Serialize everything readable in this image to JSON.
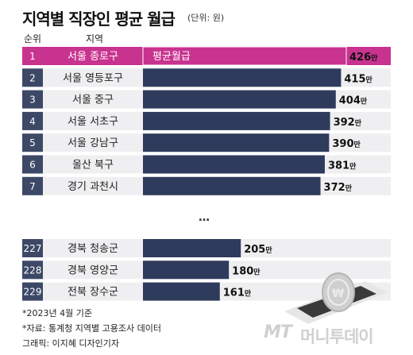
{
  "title": "지역별 직장인 평균 월급",
  "unit": "(단위: 원)",
  "headers": {
    "rank": "순위",
    "region": "지역"
  },
  "value_suffix": "만",
  "ellipsis": "…",
  "chart_data": {
    "type": "bar",
    "orientation": "horizontal",
    "title": "지역별 직장인 평균 월급",
    "unit": "(단위: 원)",
    "highlight_label": "평균월급",
    "xlim": [
      0,
      440
    ],
    "rows": [
      {
        "rank": "1",
        "region": "서울 종로구",
        "value": 426,
        "highlight": true
      },
      {
        "rank": "2",
        "region": "서울 영등포구",
        "value": 415
      },
      {
        "rank": "3",
        "region": "서울 중구",
        "value": 404
      },
      {
        "rank": "4",
        "region": "서울 서초구",
        "value": 392
      },
      {
        "rank": "5",
        "region": "서울 강남구",
        "value": 390
      },
      {
        "rank": "6",
        "region": "울산 북구",
        "value": 381
      },
      {
        "rank": "7",
        "region": "경기 과천시",
        "value": 372
      },
      {
        "rank": "227",
        "region": "경북 청송군",
        "value": 205
      },
      {
        "rank": "228",
        "region": "경북 영양군",
        "value": 180
      },
      {
        "rank": "229",
        "region": "전북 장수군",
        "value": 161
      }
    ]
  },
  "notes": [
    "*2023년 4월 기준",
    "*자료: 통계청 지역별 고용조사 데이터",
    "그래픽: 이지혜 디자인기자"
  ],
  "logo": {
    "mark": "MT",
    "name": "머니투데이"
  },
  "colors": {
    "highlight": "#c8338f",
    "highlight_row": "#f2d2e6",
    "bar": "#2f3b5c",
    "rank_box": "#3c4866",
    "track": "#efeff1"
  }
}
